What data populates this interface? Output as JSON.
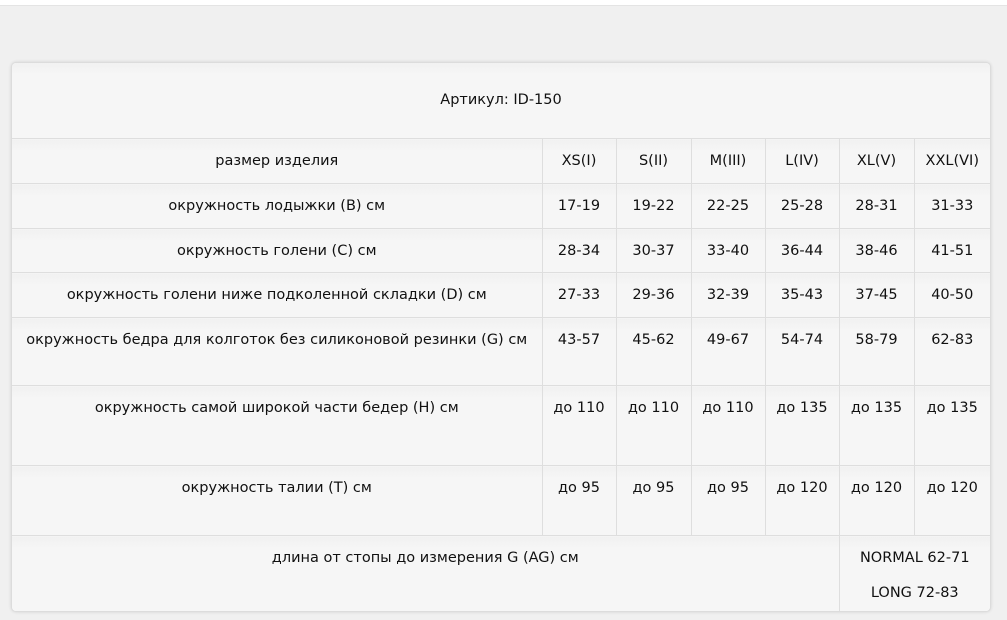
{
  "title": "Артикул: ID-150",
  "header": {
    "label": "размер изделия",
    "sizes": [
      "XS(I)",
      "S(II)",
      "M(III)",
      "L(IV)",
      "XL(V)",
      "XXL(VI)"
    ]
  },
  "rows": [
    {
      "label": "окружность лодыжки (B) см",
      "values": [
        "17-19",
        "19-22",
        "22-25",
        "25-28",
        "28-31",
        "31-33"
      ]
    },
    {
      "label": "окружность голени (C) см",
      "values": [
        "28-34",
        "30-37",
        "33-40",
        "36-44",
        "38-46",
        "41-51"
      ]
    },
    {
      "label": "окружность голени ниже подколенной складки (D) см",
      "values": [
        "27-33",
        "29-36",
        "32-39",
        "35-43",
        "37-45",
        "40-50"
      ]
    },
    {
      "label": "окружность бедра для колготок без силиконовой резинки (G) см",
      "values": [
        "43-57",
        "45-62",
        "49-67",
        "54-74",
        "58-79",
        "62-83"
      ]
    },
    {
      "label": "окружность самой широкой части бедер (H) см",
      "values": [
        "до 110",
        "до 110",
        "до 110",
        "до 135",
        "до 135",
        "до 135"
      ]
    },
    {
      "label": "окружность талии (T) см",
      "values": [
        "до 95",
        "до 95",
        "до 95",
        "до 120",
        "до 120",
        "до 120"
      ]
    }
  ],
  "length": {
    "label": "длина от стопы до измерения G (AG) см",
    "normal": "NORMAL 62-71",
    "long": "LONG 72-83"
  }
}
